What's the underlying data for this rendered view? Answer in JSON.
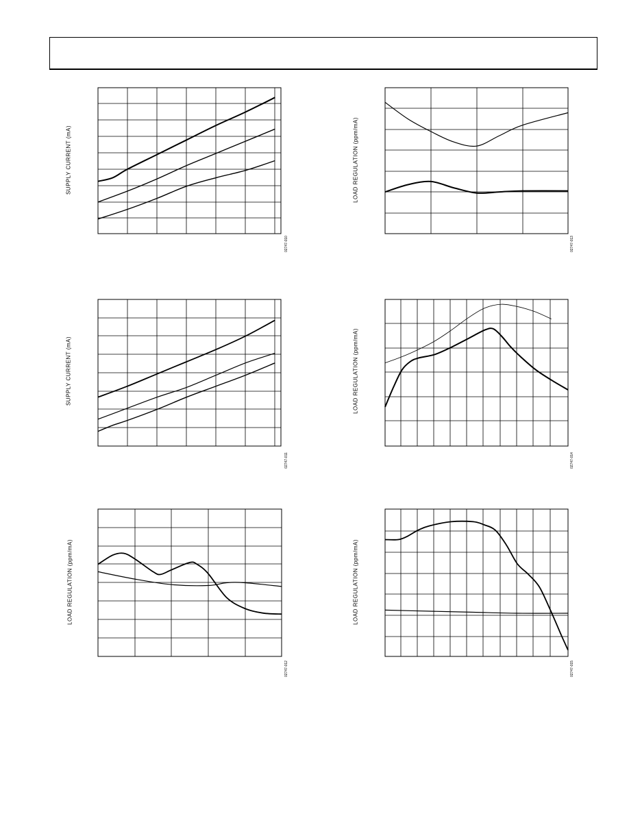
{
  "charts": [
    {
      "chart_data": {
        "type": "line",
        "ylabel": "SUPPLY CURRENT (mA)",
        "figure_id": "02747-010",
        "grid": true,
        "series": [
          {
            "points": [
              [
                0,
                4.3
              ],
              [
                0.5,
                4.6
              ],
              [
                1,
                5.3
              ],
              [
                2,
                6.5
              ],
              [
                3,
                7.7
              ],
              [
                4,
                8.9
              ],
              [
                5,
                10.0
              ],
              [
                6,
                11.2
              ]
            ]
          },
          {
            "points": [
              [
                0,
                2.6
              ],
              [
                1,
                3.5
              ],
              [
                2,
                4.5
              ],
              [
                3,
                5.6
              ],
              [
                4,
                6.6
              ],
              [
                5,
                7.6
              ],
              [
                6,
                8.6
              ]
            ]
          },
          {
            "points": [
              [
                0,
                1.2
              ],
              [
                1,
                2.0
              ],
              [
                2,
                2.9
              ],
              [
                3,
                3.9
              ],
              [
                4,
                4.6
              ],
              [
                5,
                5.2
              ],
              [
                6,
                6.0
              ]
            ]
          }
        ],
        "xlim": [
          0,
          6.2
        ],
        "ylim": [
          0,
          12
        ]
      }
    },
    {
      "chart_data": {
        "type": "line",
        "ylabel": "LOAD REGULATION (ppm/mA)",
        "figure_id": "02747-013",
        "grid": true,
        "series": [
          {
            "points": [
              [
                0,
                6.3
              ],
              [
                0.5,
                5.5
              ],
              [
                1,
                4.9
              ],
              [
                1.5,
                4.4
              ],
              [
                2,
                4.2
              ],
              [
                2.5,
                4.7
              ],
              [
                3,
                5.2
              ],
              [
                4,
                5.8
              ]
            ]
          },
          {
            "points": [
              [
                0,
                2.0
              ],
              [
                0.5,
                2.35
              ],
              [
                1,
                2.5
              ],
              [
                1.5,
                2.2
              ],
              [
                2,
                1.95
              ],
              [
                2.5,
                2.0
              ],
              [
                3,
                2.05
              ],
              [
                4,
                2.05
              ]
            ]
          }
        ],
        "xlim": [
          0,
          4
        ],
        "ylim": [
          0,
          7
        ]
      }
    },
    {
      "chart_data": {
        "type": "line",
        "ylabel": "SUPPLY CURRENT (mA)",
        "figure_id": "02747-011",
        "grid": true,
        "series": [
          {
            "points": [
              [
                0,
                4.0
              ],
              [
                1,
                4.9
              ],
              [
                2,
                5.9
              ],
              [
                3,
                6.9
              ],
              [
                4,
                7.9
              ],
              [
                5,
                9.0
              ],
              [
                6,
                10.3
              ]
            ]
          },
          {
            "points": [
              [
                0,
                2.2
              ],
              [
                1,
                3.1
              ],
              [
                2,
                4.0
              ],
              [
                3,
                4.8
              ],
              [
                4,
                5.8
              ],
              [
                5,
                6.8
              ],
              [
                6,
                7.6
              ]
            ]
          },
          {
            "points": [
              [
                0,
                1.2
              ],
              [
                0.5,
                1.7
              ],
              [
                1,
                2.1
              ],
              [
                2,
                3.0
              ],
              [
                3,
                4.0
              ],
              [
                4,
                4.9
              ],
              [
                5,
                5.8
              ],
              [
                6,
                6.8
              ]
            ]
          }
        ],
        "xlim": [
          0,
          6.2
        ],
        "ylim": [
          0,
          12
        ]
      }
    },
    {
      "chart_data": {
        "type": "line",
        "ylabel": "LOAD REGULATION (ppm/mA)",
        "figure_id": "02747-014",
        "grid": true,
        "series": [
          {
            "points": [
              [
                0,
                3.4
              ],
              [
                1,
                3.65
              ],
              [
                2,
                3.95
              ],
              [
                3,
                4.3
              ],
              [
                4,
                4.75
              ],
              [
                5,
                5.25
              ],
              [
                6,
                5.65
              ],
              [
                7,
                5.8
              ],
              [
                8,
                5.7
              ],
              [
                9,
                5.5
              ],
              [
                10,
                5.2
              ]
            ]
          },
          {
            "points": [
              [
                0,
                1.6
              ],
              [
                0.5,
                2.4
              ],
              [
                1,
                3.1
              ],
              [
                1.5,
                3.45
              ],
              [
                2,
                3.6
              ],
              [
                3,
                3.75
              ],
              [
                4,
                4.05
              ],
              [
                5,
                4.4
              ],
              [
                6,
                4.75
              ],
              [
                6.5,
                4.8
              ],
              [
                7,
                4.5
              ],
              [
                7.5,
                4.1
              ],
              [
                8,
                3.75
              ],
              [
                9,
                3.15
              ],
              [
                10,
                2.7
              ],
              [
                11,
                2.3
              ]
            ]
          }
        ],
        "xlim": [
          0,
          11
        ],
        "ylim": [
          0,
          6
        ]
      }
    },
    {
      "chart_data": {
        "type": "line",
        "ylabel": "LOAD REGULATION (ppm/mA)",
        "figure_id": "02747-012",
        "grid": true,
        "series": [
          {
            "points": [
              [
                0,
                5.0
              ],
              [
                0.4,
                5.5
              ],
              [
                0.7,
                5.6
              ],
              [
                1,
                5.3
              ],
              [
                1.5,
                4.6
              ],
              [
                1.7,
                4.45
              ],
              [
                2,
                4.7
              ],
              [
                2.5,
                5.1
              ],
              [
                2.7,
                5.0
              ],
              [
                3,
                4.5
              ],
              [
                3.5,
                3.2
              ],
              [
                4,
                2.6
              ],
              [
                4.5,
                2.35
              ],
              [
                5,
                2.3
              ]
            ]
          },
          {
            "points": [
              [
                0,
                4.6
              ],
              [
                1,
                4.2
              ],
              [
                2,
                3.9
              ],
              [
                3,
                3.85
              ],
              [
                3.5,
                4.0
              ],
              [
                4,
                4.0
              ],
              [
                5,
                3.8
              ]
            ]
          }
        ],
        "xlim": [
          0,
          5
        ],
        "ylim": [
          0,
          8
        ]
      }
    },
    {
      "chart_data": {
        "type": "line",
        "ylabel": "LOAD REGULATION (ppm/mA)",
        "figure_id": "02747-015",
        "grid": true,
        "series": [
          {
            "points": [
              [
                0,
                5.55
              ],
              [
                0.6,
                5.55
              ],
              [
                1,
                5.7
              ],
              [
                1.5,
                6.0
              ],
              [
                2,
                6.2
              ],
              [
                3,
                6.4
              ],
              [
                4,
                6.4
              ],
              [
                4.5,
                6.25
              ],
              [
                5,
                6.0
              ],
              [
                5.5,
                5.3
              ],
              [
                6,
                4.4
              ],
              [
                6.5,
                3.9
              ],
              [
                7,
                3.3
              ],
              [
                7.5,
                2.2
              ],
              [
                8,
                1.0
              ],
              [
                8.3,
                0.3
              ]
            ]
          },
          {
            "points": [
              [
                0,
                2.2
              ],
              [
                2,
                2.15
              ],
              [
                4,
                2.1
              ],
              [
                6,
                2.05
              ],
              [
                8.3,
                2.05
              ]
            ]
          }
        ],
        "xlim": [
          0,
          8.3
        ],
        "ylim": [
          0,
          7
        ]
      }
    }
  ]
}
